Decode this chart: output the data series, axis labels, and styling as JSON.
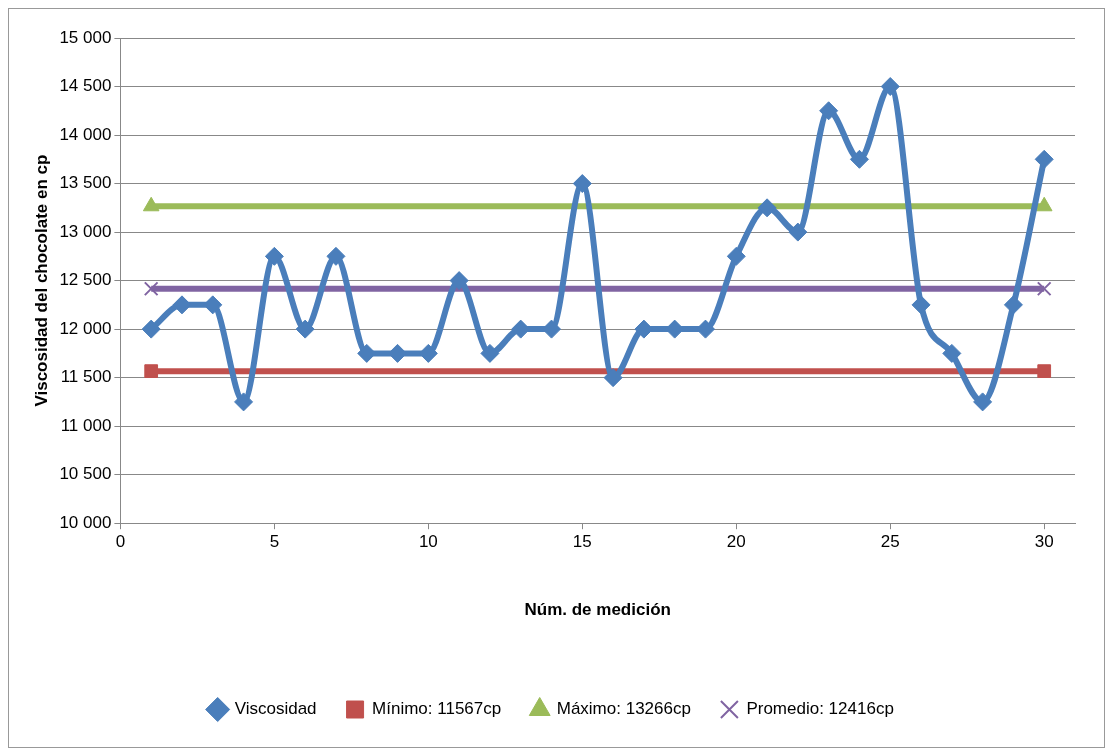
{
  "chart_data": {
    "type": "line",
    "xlabel": "Núm. de medición",
    "ylabel": "Viscosidad del chocolate en cp",
    "xlim": [
      0,
      31
    ],
    "xticks": [
      0,
      5,
      10,
      15,
      20,
      25,
      30
    ],
    "ylim": [
      10000,
      15000
    ],
    "yticks": [
      {
        "value": 10000,
        "label": "10 000"
      },
      {
        "value": 10500,
        "label": "10 500"
      },
      {
        "value": 11000,
        "label": "11 000"
      },
      {
        "value": 11500,
        "label": "11 500"
      },
      {
        "value": 12000,
        "label": "12 000"
      },
      {
        "value": 12500,
        "label": "12 500"
      },
      {
        "value": 13000,
        "label": "13 000"
      },
      {
        "value": 13500,
        "label": "13 500"
      },
      {
        "value": 14000,
        "label": "14 000"
      },
      {
        "value": 14500,
        "label": "14 500"
      },
      {
        "value": 15000,
        "label": "15 000"
      }
    ],
    "grid": "y",
    "legend": "bottom",
    "series": [
      {
        "name": "Viscosidad",
        "color": "#4a7ebb",
        "marker": "diamond",
        "x": [
          1,
          2,
          3,
          4,
          5,
          6,
          7,
          8,
          9,
          10,
          11,
          12,
          13,
          14,
          15,
          16,
          17,
          18,
          19,
          20,
          21,
          22,
          23,
          24,
          25,
          26,
          27,
          28,
          29,
          30
        ],
        "values": [
          12000,
          12250,
          12250,
          11250,
          12750,
          12000,
          12750,
          11750,
          11750,
          11750,
          12500,
          11750,
          12000,
          12000,
          13500,
          11500,
          12000,
          12000,
          12000,
          12750,
          13250,
          13000,
          14250,
          13750,
          14500,
          12250,
          11750,
          11250,
          12250,
          13750
        ]
      },
      {
        "name": "Mínimo: 11567cp",
        "color": "#c0504d",
        "marker": "square",
        "x": [
          1,
          30
        ],
        "values": [
          11567,
          11567
        ]
      },
      {
        "name": "Máximo: 13266cp",
        "color": "#9bbb59",
        "marker": "triangle",
        "x": [
          1,
          30
        ],
        "values": [
          13266,
          13266
        ]
      },
      {
        "name": "Promedio: 12416cp",
        "color": "#8064a2",
        "marker": "cross",
        "x": [
          1,
          30
        ],
        "values": [
          12416,
          12416
        ]
      }
    ]
  }
}
